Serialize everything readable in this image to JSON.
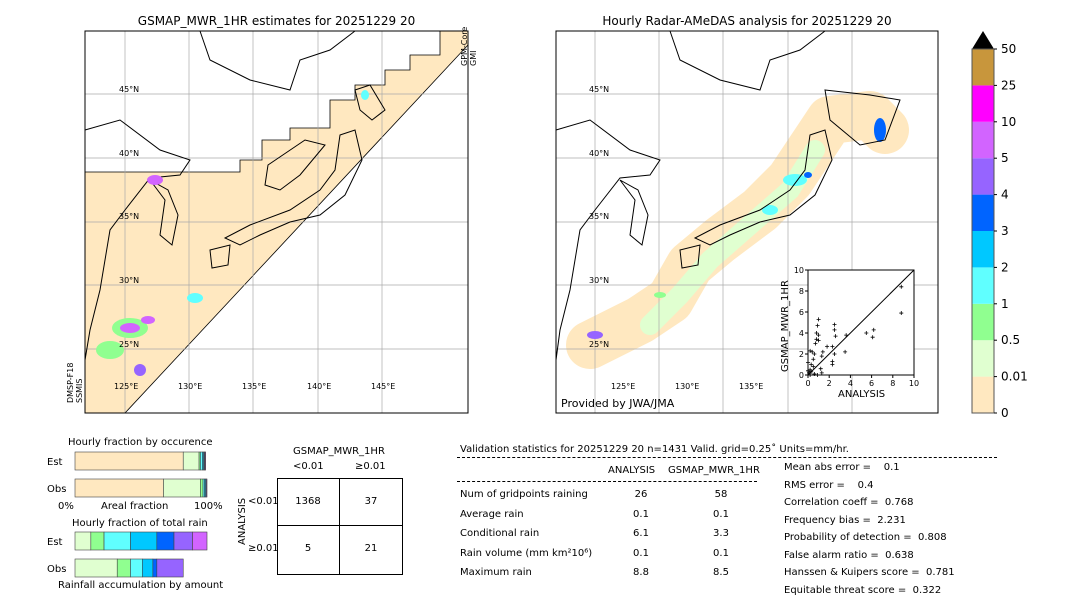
{
  "left_map": {
    "title": "GSMAP_MWR_1HR estimates for 20251229 20",
    "sensor_top": [
      "GPM-Core",
      "GMI"
    ],
    "sensor_bottom": [
      "DMSP-F18",
      "SSMIS"
    ],
    "lat_labels": [
      "45°N",
      "40°N",
      "35°N",
      "30°N",
      "25°N"
    ],
    "lon_labels": [
      "125°E",
      "130°E",
      "135°E",
      "140°E",
      "145°E"
    ]
  },
  "right_map": {
    "title": "Hourly Radar-AMeDAS analysis for 20251229 20",
    "credit": "Provided by JWA/JMA",
    "lat_labels": [
      "45°N",
      "40°N",
      "35°N",
      "30°N",
      "25°N"
    ],
    "lon_labels": [
      "125°E",
      "130°E",
      "135°E"
    ]
  },
  "colorbar": {
    "ticks": [
      "0",
      "0.01",
      "0.5",
      "1",
      "2",
      "3",
      "4",
      "5",
      "10",
      "25",
      "50"
    ],
    "colors": [
      "#ffe8c0",
      "#e0ffd0",
      "#90ff90",
      "#60ffff",
      "#00c8ff",
      "#0064ff",
      "#9664ff",
      "#d264ff",
      "#ff00ff",
      "#c8963c"
    ],
    "extend_color": "#000000"
  },
  "chart_data": {
    "type": "scatter",
    "xlabel": "ANALYSIS",
    "ylabel": "GSMAP_MWR_1HR",
    "xlim": [
      0,
      10
    ],
    "ylim": [
      0,
      10
    ],
    "xticks": [
      "0",
      "2",
      "4",
      "6",
      "8",
      "10"
    ],
    "yticks": [
      "0",
      "2",
      "4",
      "6",
      "8",
      "10"
    ],
    "diagonal": true,
    "points": [
      [
        8.8,
        8.4
      ],
      [
        8.8,
        5.9
      ],
      [
        6.2,
        4.3
      ],
      [
        6.1,
        3.6
      ],
      [
        5.5,
        4.0
      ],
      [
        3.6,
        3.8
      ],
      [
        3.5,
        2.2
      ],
      [
        2.5,
        4.8
      ],
      [
        2.5,
        4.3
      ],
      [
        2.6,
        3.7
      ],
      [
        2.5,
        2.0
      ],
      [
        2.3,
        1.3
      ],
      [
        2.3,
        1.0
      ],
      [
        2.3,
        2.7
      ],
      [
        1.8,
        2.7
      ],
      [
        1.0,
        5.3
      ],
      [
        0.9,
        4.7
      ],
      [
        0.8,
        4.0
      ],
      [
        1.0,
        3.8
      ],
      [
        0.8,
        3.4
      ],
      [
        1.0,
        3.3
      ],
      [
        0.7,
        3.0
      ],
      [
        1.4,
        2.2
      ],
      [
        1.3,
        1.8
      ],
      [
        0.6,
        2.0
      ],
      [
        0.4,
        2.2
      ],
      [
        0.2,
        2.3
      ],
      [
        0.5,
        1.5
      ],
      [
        0.3,
        1.0
      ],
      [
        1.2,
        0.6
      ],
      [
        1.3,
        0.2
      ],
      [
        0.2,
        0.5
      ],
      [
        0.1,
        0.2
      ],
      [
        0.3,
        0.3
      ],
      [
        0.5,
        0.8
      ],
      [
        0.0,
        0.4
      ],
      [
        0.0,
        1.2
      ],
      [
        0.6,
        0.1
      ],
      [
        0.9,
        0.0
      ],
      [
        0.2,
        0.0
      ]
    ]
  },
  "occurrence": {
    "title": "Hourly fraction by occurence",
    "rows": [
      "Est",
      "Obs"
    ],
    "xlabel": "Areal fraction",
    "x_left": "0%",
    "x_right": "100%",
    "est": [
      82,
      12,
      1,
      1.5,
      1,
      0.5,
      0.5,
      0.5
    ],
    "obs": [
      67,
      28,
      2,
      1,
      1,
      0.5,
      0.5
    ]
  },
  "total_rain": {
    "title": "Hourly fraction of total rain",
    "rows": [
      "Est",
      "Obs"
    ],
    "xlabel": "Rainfall accumulation by amount",
    "est": [
      12,
      10,
      20,
      20,
      13,
      14,
      11
    ],
    "obs": [
      32,
      10,
      9,
      8,
      3,
      20
    ]
  },
  "contingency": {
    "title": "GSMAP_MWR_1HR",
    "col_labels": [
      "<0.01",
      "≥0.01"
    ],
    "row_title": "ANALYSIS",
    "row_labels": [
      "<0.01",
      "≥0.01"
    ],
    "cells": [
      [
        "1368",
        "37"
      ],
      [
        "5",
        "21"
      ]
    ]
  },
  "stats": {
    "header": "Validation statistics for 20251229 20  n=1431 Valid. grid=0.25˚ Units=mm/hr.",
    "columns": [
      "ANALYSIS",
      "GSMAP_MWR_1HR"
    ],
    "rows": [
      {
        "label": "Num of gridpoints raining",
        "a": "26",
        "g": "58"
      },
      {
        "label": "Average rain",
        "a": "0.1",
        "g": "0.1"
      },
      {
        "label": "Conditional rain",
        "a": "6.1",
        "g": "3.3"
      },
      {
        "label": "Rain volume (mm km²10⁶)",
        "a": "0.1",
        "g": "0.1"
      },
      {
        "label": "Maximum rain",
        "a": "8.8",
        "g": "8.5"
      }
    ],
    "scores": [
      "Mean abs error =    0.1",
      "RMS error =    0.4",
      "Correlation coeff =  0.768",
      "Frequency bias =  2.231",
      "Probability of detection =  0.808",
      "False alarm ratio =  0.638",
      "Hanssen & Kuipers score =  0.781",
      "Equitable threat score =  0.322"
    ]
  }
}
